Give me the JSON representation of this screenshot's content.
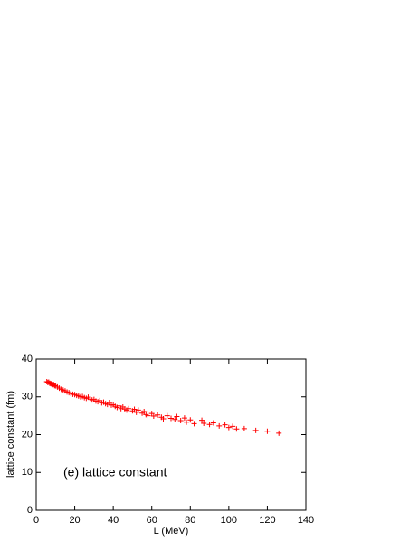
{
  "chart_data": {
    "type": "scatter",
    "annotation": "(e) lattice constant",
    "xlabel": "L (MeV)",
    "ylabel": "lattice constant (fm)",
    "color": "#ff0000",
    "xlim": [
      0,
      140
    ],
    "xticks": [
      0,
      20,
      40,
      60,
      80,
      100,
      120,
      140
    ],
    "ylim": [
      0,
      40
    ],
    "yticks": [
      0,
      10,
      20,
      30,
      40
    ],
    "x": [
      5.5,
      6,
      6.5,
      7,
      7.5,
      8,
      8.5,
      9,
      9.5,
      10,
      11,
      12,
      13,
      14,
      15,
      16,
      17,
      18,
      19,
      20,
      21,
      22,
      23,
      24,
      25,
      26,
      27,
      28,
      29,
      30,
      31,
      32,
      33,
      34,
      35,
      36,
      37,
      38,
      39,
      40,
      41,
      42,
      43,
      44,
      45,
      46,
      47,
      48,
      50,
      51,
      52,
      53,
      55,
      56,
      57,
      58,
      60,
      61,
      63,
      65,
      66,
      68,
      70,
      72,
      73,
      75,
      77,
      78,
      80,
      82,
      86,
      87,
      90,
      92,
      95,
      98,
      100,
      102,
      104,
      108,
      114,
      120,
      126
    ],
    "values": [
      34,
      33.8,
      33.9,
      33.6,
      33.5,
      33.4,
      33.2,
      33.3,
      33.0,
      32.9,
      32.6,
      32.3,
      32.0,
      31.8,
      31.6,
      31.3,
      31.1,
      30.9,
      30.7,
      30.6,
      30.4,
      30.2,
      30.0,
      30.1,
      29.8,
      29.6,
      29.9,
      29.4,
      29.2,
      29.3,
      28.9,
      28.7,
      29.0,
      28.4,
      28.6,
      28.2,
      28.0,
      28.5,
      27.8,
      27.9,
      27.5,
      27.2,
      27.6,
      26.9,
      27.3,
      26.8,
      26.5,
      26.9,
      26.3,
      26.7,
      25.9,
      26.5,
      25.7,
      26.1,
      25.3,
      25.0,
      25.6,
      24.9,
      25.2,
      24.6,
      24.2,
      25.0,
      24.3,
      24.0,
      24.8,
      23.7,
      24.4,
      23.3,
      23.9,
      22.9,
      23.8,
      23.0,
      22.7,
      23.1,
      22.3,
      22.6,
      21.9,
      22.2,
      21.5,
      21.6,
      21.1,
      20.9,
      20.4
    ]
  }
}
